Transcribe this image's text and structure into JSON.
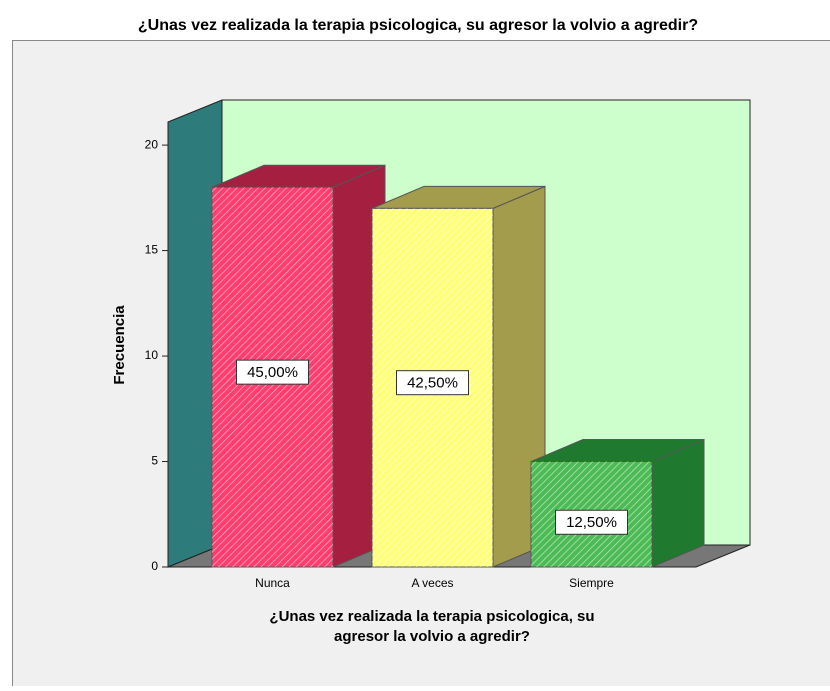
{
  "chart_data": {
    "type": "bar3d",
    "title": "¿Unas vez realizada la terapia psicologica, su agresor la volvio a agredir?",
    "x_label": [
      "¿Unas vez realizada la terapia psicologica, su",
      "agresor la volvio a agredir?"
    ],
    "y_label": "Frecuencia",
    "categories": [
      "Nunca",
      "A veces",
      "Siempre"
    ],
    "values": [
      18,
      17,
      5
    ],
    "percentages": [
      45,
      42.5,
      12.5
    ],
    "percentage_labels": [
      "45,00%",
      "42,50%",
      "12,50%"
    ],
    "colors": [
      "#ff3d6e",
      "#ffff7a",
      "#4dbb55"
    ],
    "side_colors": [
      "#a51f40",
      "#a39c4c",
      "#1f7a30"
    ],
    "ylim": [
      0,
      21
    ],
    "yticks": [
      0,
      5,
      10,
      15,
      20
    ]
  }
}
